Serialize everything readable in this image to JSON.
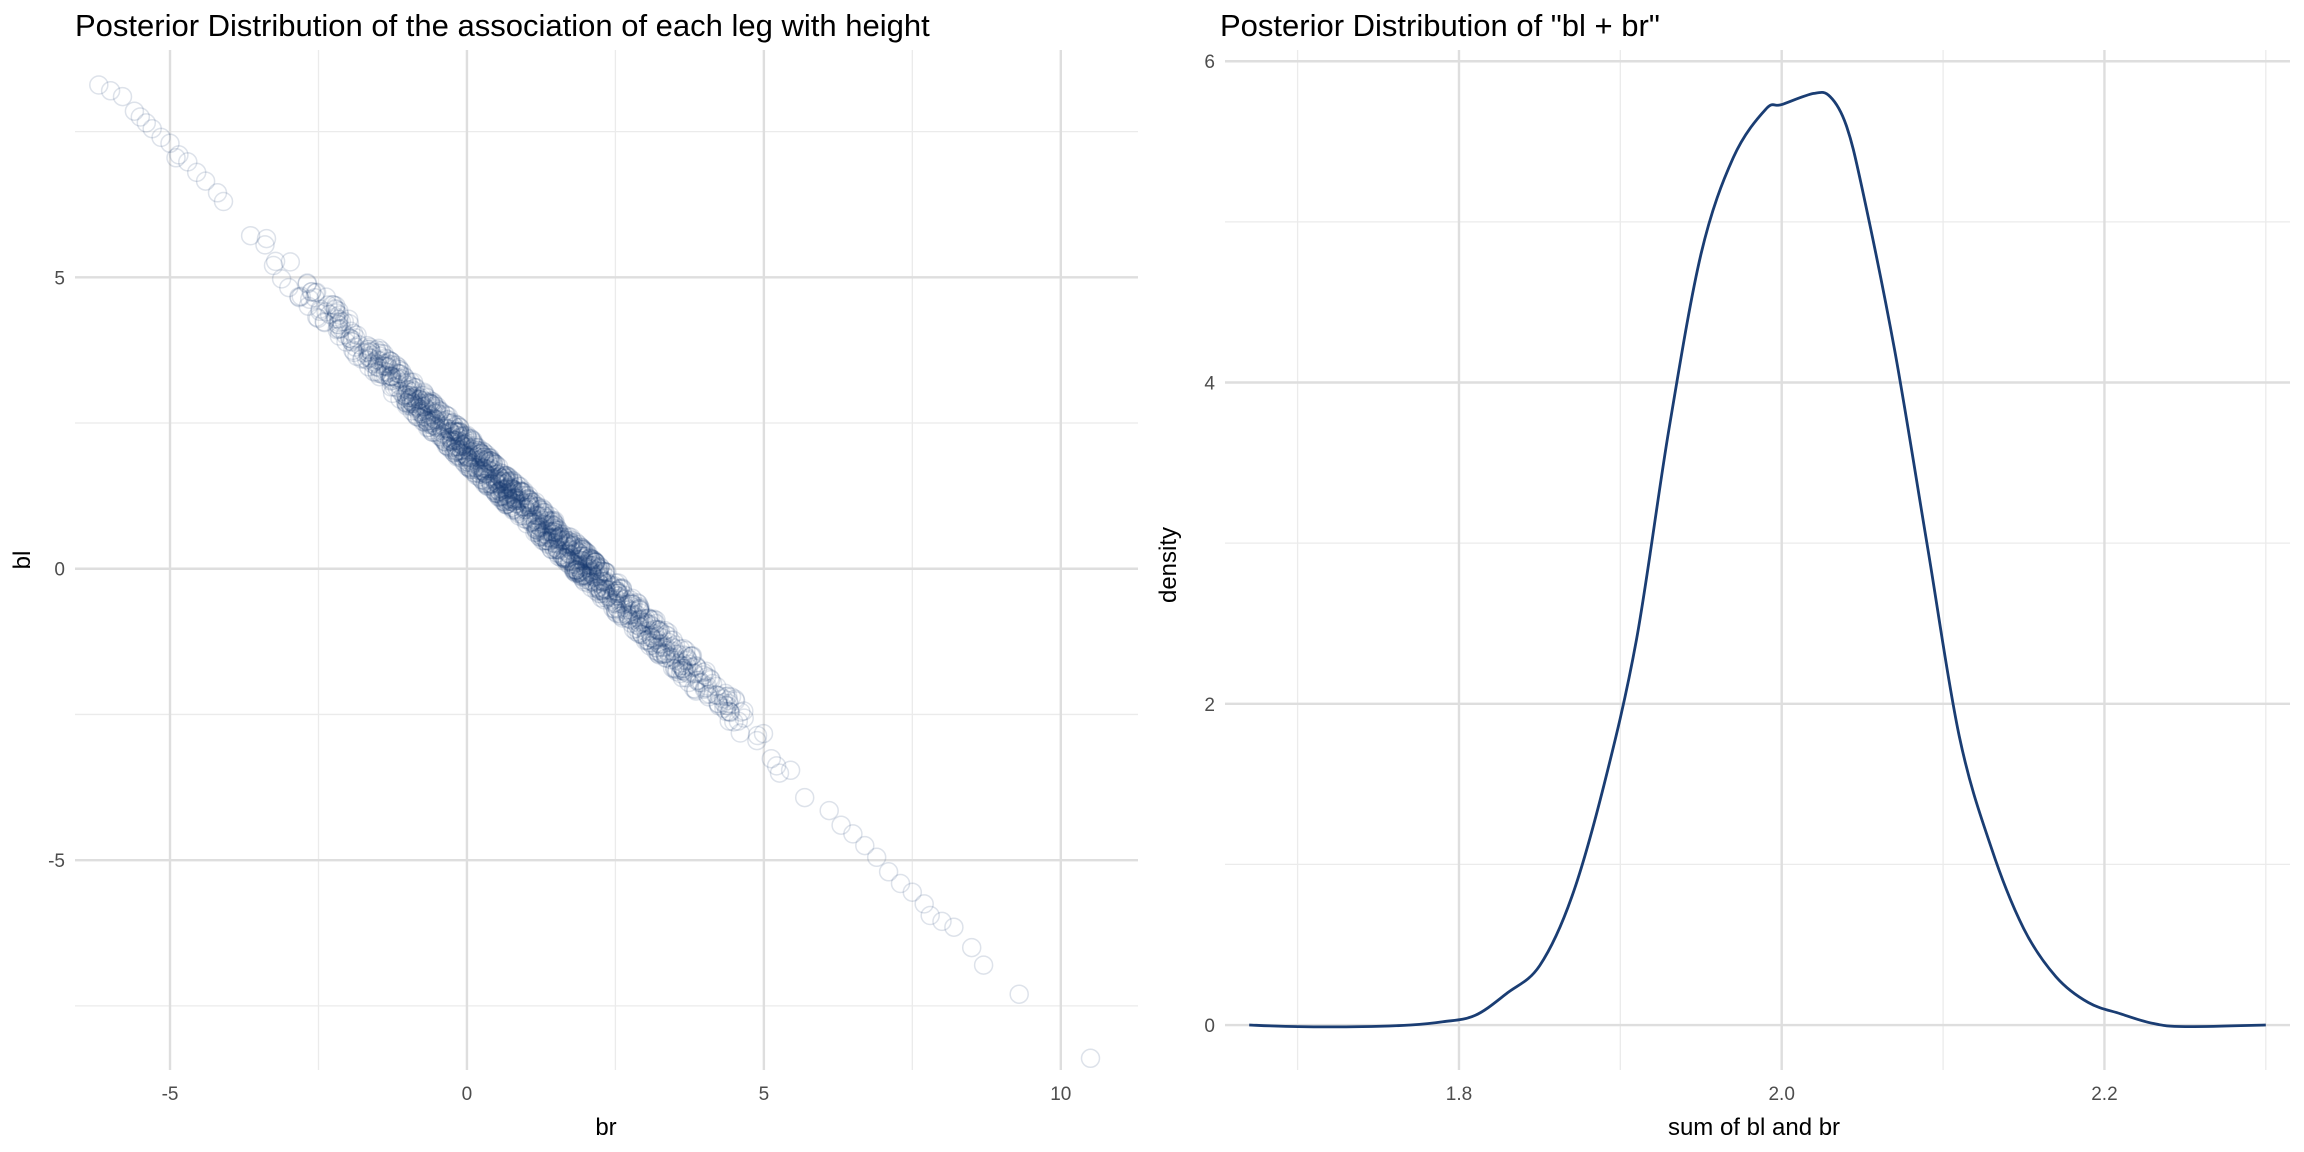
{
  "chart_data": [
    {
      "type": "scatter",
      "title": "Posterior Distribution of the association of each leg with height",
      "xlabel": "br",
      "ylabel": "bl",
      "xlim": [
        -6.6,
        11.3
      ],
      "ylim": [
        -8.6,
        8.9
      ],
      "x_ticks": [
        -5,
        0,
        5,
        10
      ],
      "x_tick_labels": [
        "-5",
        "0",
        "5",
        "10"
      ],
      "y_ticks": [
        -5,
        0,
        5
      ],
      "y_tick_labels": [
        "-5",
        "0",
        "5"
      ],
      "grid": true,
      "marker": "open-circle",
      "marker_color": "#1a3d73",
      "marker_alpha": 0.15,
      "relation": "bl ≈ 2.03 − br",
      "points": [
        [
          -6.2,
          8.3
        ],
        [
          -6.0,
          8.2
        ],
        [
          -5.8,
          8.1
        ],
        [
          -5.6,
          7.85
        ],
        [
          -5.4,
          7.65
        ],
        [
          -5.3,
          7.55
        ],
        [
          -5.15,
          7.4
        ],
        [
          -5.0,
          7.3
        ],
        [
          -4.85,
          7.1
        ],
        [
          -4.7,
          6.98
        ],
        [
          -4.55,
          6.8
        ],
        [
          -4.4,
          6.65
        ],
        [
          -4.9,
          7.05
        ],
        [
          -4.2,
          6.45
        ],
        [
          -4.1,
          6.3
        ],
        [
          -5.5,
          7.75
        ],
        [
          10.5,
          -8.4
        ],
        [
          9.3,
          -7.3
        ],
        [
          8.7,
          -6.8
        ],
        [
          8.5,
          -6.5
        ],
        [
          8.2,
          -6.15
        ],
        [
          8.0,
          -6.05
        ],
        [
          7.8,
          -5.95
        ],
        [
          7.7,
          -5.75
        ],
        [
          7.5,
          -5.55
        ],
        [
          7.3,
          -5.4
        ],
        [
          7.1,
          -5.2
        ],
        [
          6.9,
          -4.95
        ],
        [
          6.7,
          -4.75
        ],
        [
          6.5,
          -4.55
        ],
        [
          6.3,
          -4.4
        ],
        [
          6.1,
          -4.15
        ]
      ],
      "dense_band": {
        "x_from": -4.2,
        "x_to": 6.1,
        "intercept": 2.03,
        "slope": -1.0,
        "approx_points": 1300
      }
    },
    {
      "type": "line",
      "title": "Posterior Distribution of \"bl + br\"",
      "xlabel": "sum of bl and br",
      "ylabel": "density",
      "xlim": [
        1.655,
        2.315
      ],
      "ylim": [
        -0.28,
        6.07
      ],
      "x_ticks": [
        1.8,
        2.0,
        2.2
      ],
      "x_tick_labels": [
        "1.8",
        "2.0",
        "2.2"
      ],
      "y_ticks": [
        0,
        2,
        4,
        6
      ],
      "y_tick_labels": [
        "0",
        "2",
        "4",
        "6"
      ],
      "grid": true,
      "line_color": "#1a3d73",
      "x": [
        1.67,
        1.7,
        1.74,
        1.77,
        1.79,
        1.81,
        1.83,
        1.85,
        1.87,
        1.89,
        1.91,
        1.93,
        1.95,
        1.97,
        1.99,
        2.0,
        2.02,
        2.03,
        2.04,
        2.05,
        2.07,
        2.09,
        2.11,
        2.13,
        2.15,
        2.17,
        2.19,
        2.21,
        2.23,
        2.25,
        2.3
      ],
      "y": [
        0.0,
        -0.01,
        -0.01,
        0.0,
        0.02,
        0.06,
        0.2,
        0.37,
        0.8,
        1.5,
        2.4,
        3.7,
        4.8,
        5.4,
        5.7,
        5.73,
        5.8,
        5.78,
        5.6,
        5.2,
        4.2,
        3.0,
        1.8,
        1.1,
        0.6,
        0.3,
        0.14,
        0.07,
        0.01,
        -0.01,
        0.0
      ]
    }
  ]
}
